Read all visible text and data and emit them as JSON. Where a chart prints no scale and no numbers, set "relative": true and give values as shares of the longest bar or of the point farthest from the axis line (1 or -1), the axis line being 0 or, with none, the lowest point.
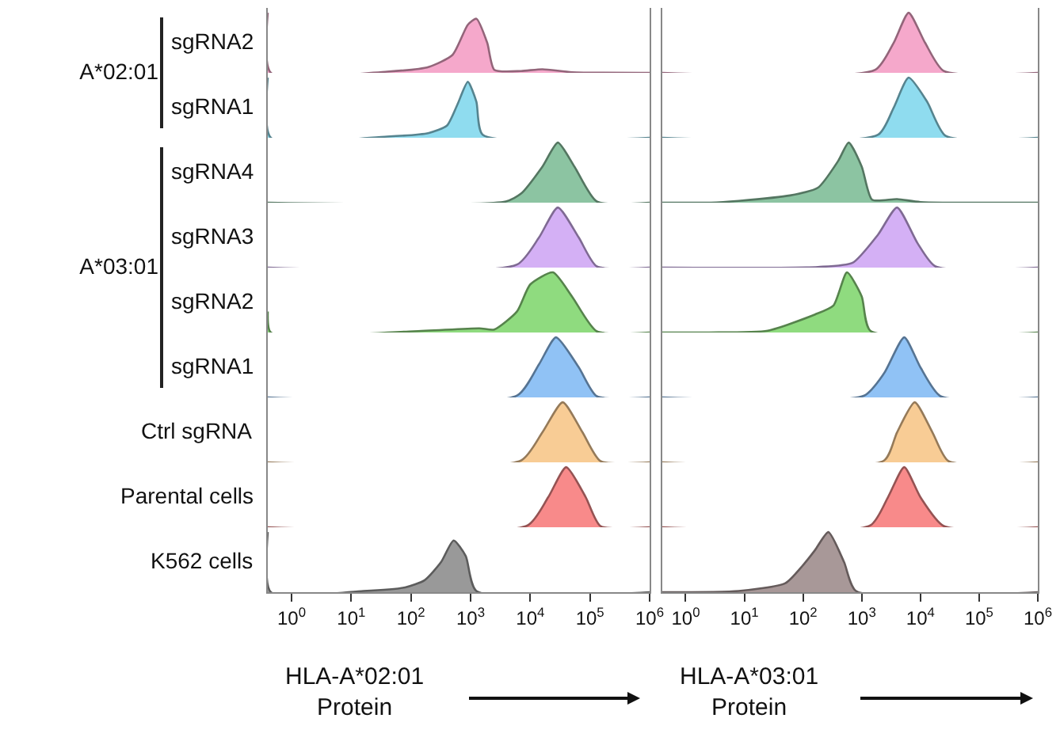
{
  "chart_data": [
    {
      "type": "area",
      "relative": true,
      "ylabel": "sgRNA2",
      "annotations": [
        "A*02:01"
      ],
      "tick_labels": false,
      "grid": false,
      "xlim": [
        0.4,
        1000000
      ],
      "log": "x",
      "series": [
        {
          "color": "#f5a8cb",
          "x": [
            0.4,
            0.45,
            40,
            200,
            500,
            900,
            1250,
            1900,
            2500,
            7000,
            16000,
            50000,
            1000000
          ],
          "values": [
            1,
            0,
            0.02,
            0.1,
            0.3,
            0.8,
            0.9,
            0.5,
            0.05,
            0.03,
            0.06,
            0.01,
            0
          ]
        }
      ]
    },
    {
      "type": "area",
      "relative": true,
      "tick_labels": false,
      "grid": false,
      "xlim": [
        0.4,
        1000000
      ],
      "log": "x",
      "series": [
        {
          "color": "#f5a8cb",
          "x": [
            0.4,
            1700,
            3500,
            6300,
            12000,
            25000,
            1000000
          ],
          "values": [
            0,
            0.05,
            0.5,
            1,
            0.5,
            0.03,
            0
          ]
        }
      ]
    },
    {
      "type": "area",
      "relative": true,
      "ylabel": "sgRNA1",
      "tick_labels": false,
      "grid": false,
      "xlim": [
        0.4,
        1000000
      ],
      "log": "x",
      "series": [
        {
          "color": "#8fdcef",
          "x": [
            0.4,
            0.45,
            40,
            200,
            400,
            600,
            900,
            1250,
            1600,
            1000000
          ],
          "values": [
            1,
            0,
            0.02,
            0.08,
            0.2,
            0.55,
            0.93,
            0.6,
            0.05,
            0
          ]
        }
      ]
    },
    {
      "type": "area",
      "relative": true,
      "tick_labels": false,
      "grid": false,
      "xlim": [
        0.4,
        1000000
      ],
      "log": "x",
      "series": [
        {
          "color": "#8fdcef",
          "x": [
            0.4,
            1900,
            3500,
            6300,
            13000,
            27000,
            1000000
          ],
          "values": [
            0,
            0.05,
            0.5,
            1,
            0.6,
            0.03,
            0
          ]
        }
      ]
    },
    {
      "type": "area",
      "relative": true,
      "ylabel": "sgRNA4",
      "annotations": [
        "A*03:01"
      ],
      "tick_labels": false,
      "grid": false,
      "xlim": [
        0.4,
        1000000
      ],
      "log": "x",
      "series": [
        {
          "color": "#8cc4a2",
          "x": [
            0.4,
            3900,
            7000,
            16000,
            29000,
            55000,
            130000,
            1000000
          ],
          "values": [
            0,
            0.02,
            0.15,
            0.6,
            1,
            0.6,
            0.02,
            0
          ]
        }
      ]
    },
    {
      "type": "area",
      "relative": true,
      "tick_labels": false,
      "grid": false,
      "xlim": [
        0.4,
        1000000
      ],
      "log": "x",
      "series": [
        {
          "color": "#8cc4a2",
          "x": [
            0.4,
            2.7,
            8,
            60,
            180,
            400,
            600,
            1000,
            1500,
            4000,
            10000,
            1000000
          ],
          "values": [
            0,
            0,
            0.03,
            0.12,
            0.25,
            0.7,
            1,
            0.6,
            0.05,
            0.06,
            0.01,
            0
          ]
        }
      ]
    },
    {
      "type": "area",
      "relative": true,
      "ylabel": "sgRNA3",
      "tick_labels": false,
      "grid": false,
      "xlim": [
        0.4,
        1000000
      ],
      "log": "x",
      "series": [
        {
          "color": "#d4b0f5",
          "x": [
            0.4,
            6000,
            14000,
            29000,
            65000,
            130000,
            1000000
          ],
          "values": [
            0,
            0.05,
            0.5,
            1,
            0.5,
            0.02,
            0
          ]
        }
      ]
    },
    {
      "type": "area",
      "relative": true,
      "tick_labels": false,
      "grid": false,
      "xlim": [
        0.4,
        1000000
      ],
      "log": "x",
      "series": [
        {
          "color": "#d4b0f5",
          "x": [
            0.4,
            180,
            700,
            1900,
            4000,
            9000,
            18000,
            1000000
          ],
          "values": [
            0,
            0.01,
            0.08,
            0.55,
            1,
            0.4,
            0.02,
            0
          ]
        }
      ]
    },
    {
      "type": "area",
      "relative": true,
      "ylabel": "sgRNA2",
      "tick_labels": false,
      "grid": false,
      "xlim": [
        0.4,
        1000000
      ],
      "log": "x",
      "series": [
        {
          "color": "#8fdb7f",
          "x": [
            0.4,
            0.45,
            110,
            1400,
            2500,
            6000,
            10000,
            24000,
            50000,
            130000,
            1000000
          ],
          "values": [
            0.35,
            0,
            0.02,
            0.07,
            0.05,
            0.35,
            0.8,
            1,
            0.6,
            0.02,
            0
          ]
        }
      ]
    },
    {
      "type": "area",
      "relative": true,
      "tick_labels": false,
      "grid": false,
      "xlim": [
        0.4,
        1000000
      ],
      "log": "x",
      "series": [
        {
          "color": "#8fdb7f",
          "x": [
            0.4,
            2.5,
            25,
            160,
            330,
            560,
            1000,
            1400,
            1000000
          ],
          "values": [
            0,
            0,
            0.03,
            0.3,
            0.45,
            1,
            0.6,
            0.03,
            0
          ]
        }
      ]
    },
    {
      "type": "area",
      "relative": true,
      "ylabel": "sgRNA1",
      "tick_labels": false,
      "grid": false,
      "xlim": [
        0.4,
        1000000
      ],
      "log": "x",
      "series": [
        {
          "color": "#90c2f5",
          "x": [
            0.4,
            6000,
            14000,
            27000,
            65000,
            130000,
            1000000
          ],
          "values": [
            0,
            0.03,
            0.55,
            1,
            0.5,
            0.02,
            0
          ]
        }
      ]
    },
    {
      "type": "area",
      "relative": true,
      "tick_labels": false,
      "grid": false,
      "xlim": [
        0.4,
        1000000
      ],
      "log": "x",
      "series": [
        {
          "color": "#90c2f5",
          "x": [
            0.4,
            1100,
            2400,
            5300,
            10000,
            22000,
            1000000
          ],
          "values": [
            0,
            0.03,
            0.4,
            1,
            0.5,
            0.02,
            0
          ]
        }
      ]
    },
    {
      "type": "area",
      "relative": true,
      "ylabel": "Ctrl sgRNA",
      "tick_labels": false,
      "grid": false,
      "xlim": [
        0.4,
        1000000
      ],
      "log": "x",
      "series": [
        {
          "color": "#f8cc95",
          "x": [
            0.4,
            7000,
            16000,
            35000,
            75000,
            150000,
            1000000
          ],
          "values": [
            0,
            0.03,
            0.5,
            1,
            0.5,
            0.02,
            0
          ]
        }
      ]
    },
    {
      "type": "area",
      "relative": true,
      "tick_labels": false,
      "grid": false,
      "xlim": [
        0.4,
        1000000
      ],
      "log": "x",
      "series": [
        {
          "color": "#f8cc95",
          "x": [
            0.4,
            2400,
            4000,
            8000,
            16000,
            30000,
            1000000
          ],
          "values": [
            0,
            0.03,
            0.5,
            1,
            0.5,
            0.02,
            0
          ]
        }
      ]
    },
    {
      "type": "area",
      "relative": true,
      "ylabel": "Parental cells",
      "tick_labels": false,
      "grid": false,
      "xlim": [
        0.4,
        1000000
      ],
      "log": "x",
      "series": [
        {
          "color": "#f88a8a",
          "x": [
            0.4,
            9000,
            20000,
            40000,
            85000,
            150000,
            1000000
          ],
          "values": [
            0,
            0.03,
            0.5,
            1,
            0.5,
            0.02,
            0
          ]
        }
      ]
    },
    {
      "type": "area",
      "relative": true,
      "tick_labels": false,
      "grid": false,
      "xlim": [
        0.4,
        1000000
      ],
      "log": "x",
      "series": [
        {
          "color": "#f88a8a",
          "x": [
            0.4,
            1400,
            2800,
            5300,
            10000,
            25000,
            1000000
          ],
          "values": [
            0,
            0.03,
            0.5,
            1,
            0.5,
            0.02,
            0
          ]
        }
      ]
    },
    {
      "type": "area",
      "relative": true,
      "ylabel": "K562 cells",
      "xlabel": "HLA-A*02:01\nProtein",
      "tick_labels": "x",
      "grid": false,
      "xlim": [
        0.4,
        1000000
      ],
      "log": "x",
      "xticks": [
        {
          "value": 1,
          "label": "10$^{0}$"
        },
        {
          "value": 10,
          "label": "10$^{1}$"
        },
        {
          "value": 100,
          "label": "10$^{2}$"
        },
        {
          "value": 1000,
          "label": "10$^{3}$"
        },
        {
          "value": 10000,
          "label": "10$^{4}$"
        },
        {
          "value": 100000,
          "label": "10$^{5}$"
        },
        {
          "value": 1000000,
          "label": "10$^{6}$"
        }
      ],
      "series": [
        {
          "color": "#999999",
          "x": [
            0.4,
            0.45,
            16,
            80,
            170,
            320,
            520,
            830,
            1250,
            1000000
          ],
          "values": [
            1,
            0,
            0.02,
            0.08,
            0.2,
            0.5,
            0.86,
            0.6,
            0.02,
            0
          ]
        }
      ]
    },
    {
      "type": "area",
      "relative": true,
      "xlabel": "HLA-A*03:01\nProtein",
      "tick_labels": "x",
      "grid": false,
      "xlim": [
        0.4,
        1000000
      ],
      "log": "x",
      "xticks": [
        {
          "value": 1,
          "label": "10$^{0}$"
        },
        {
          "value": 10,
          "label": "10$^{1}$"
        },
        {
          "value": 100,
          "label": "10$^{2}$"
        },
        {
          "value": 1000,
          "label": "10$^{3}$"
        },
        {
          "value": 10000,
          "label": "10$^{4}$"
        },
        {
          "value": 100000,
          "label": "10$^{5}$"
        },
        {
          "value": 1000000,
          "label": "10$^{6}$"
        }
      ],
      "series": [
        {
          "color": "#a89898",
          "x": [
            0.4,
            8,
            50,
            100,
            160,
            270,
            500,
            800,
            1000000
          ],
          "values": [
            0,
            0.02,
            0.15,
            0.45,
            0.7,
            1,
            0.5,
            0.02,
            0
          ]
        }
      ]
    }
  ]
}
